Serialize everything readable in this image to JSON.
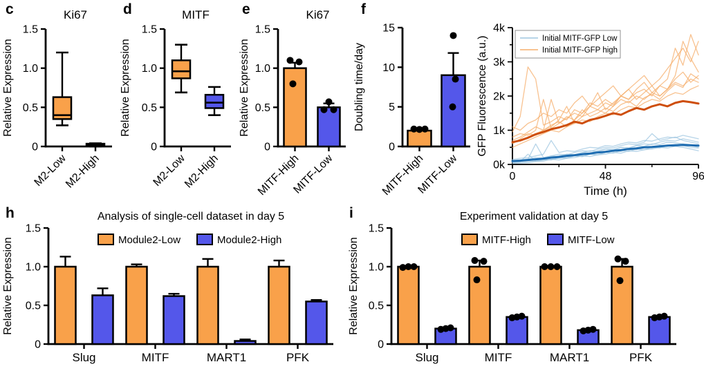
{
  "colors": {
    "orange": "#F9A14A",
    "blue": "#5457EA",
    "black": "#000000",
    "line_orange_faint": "#F6AE6B",
    "line_orange_bold": "#CE4E0B",
    "line_blue_faint": "#9DC6E0",
    "line_blue_bold": "#1D6CB1",
    "legend_border": "#909090"
  },
  "chart_data": [
    {
      "panel": "c",
      "type": "box",
      "title": "Ki67",
      "ylabel": "Relative Expression",
      "ylim": [
        0,
        1.5
      ],
      "yticks": [
        0,
        0.5,
        1.0,
        1.5
      ],
      "ytick_labels": [
        "0",
        "0.5",
        "1.0",
        "1.5"
      ],
      "items": [
        {
          "label": "M2-Low",
          "color": "orange",
          "lo": 0.27,
          "q1": 0.35,
          "med": 0.4,
          "q3": 0.63,
          "hi": 1.2
        },
        {
          "label": "M2-High",
          "color": "black",
          "lo": 0.0,
          "q1": 0.005,
          "med": 0.02,
          "q3": 0.035,
          "hi": 0.04
        }
      ]
    },
    {
      "panel": "d",
      "type": "box",
      "title": "MITF",
      "ylabel": "Relative Expression",
      "ylim": [
        0,
        1.5
      ],
      "yticks": [
        0,
        0.5,
        1.0,
        1.5
      ],
      "ytick_labels": [
        "0",
        "0.5",
        "1.0",
        "1.5"
      ],
      "items": [
        {
          "label": "M2-Low",
          "color": "orange",
          "lo": 0.69,
          "q1": 0.87,
          "med": 0.96,
          "q3": 1.1,
          "hi": 1.3
        },
        {
          "label": "M2-High",
          "color": "blue",
          "lo": 0.4,
          "q1": 0.49,
          "med": 0.56,
          "q3": 0.66,
          "hi": 0.76
        }
      ]
    },
    {
      "panel": "e",
      "type": "bar",
      "title": "Ki67",
      "ylabel": "Relative Expression",
      "ylim": [
        0,
        1.5
      ],
      "yticks": [
        0,
        0.5,
        1.0,
        1.5
      ],
      "ytick_labels": [
        "0",
        "0.5",
        "1.0",
        "1.5"
      ],
      "bars": [
        {
          "label": "MITF-High",
          "color": "orange",
          "value": 1.0,
          "err": 0.07,
          "dots": [
            1.1,
            1.08,
            0.8
          ],
          "dx": [
            -7,
            6,
            -3
          ]
        },
        {
          "label": "MITF-Low",
          "color": "blue",
          "value": 0.5,
          "err": 0.05,
          "dots": [
            0.57,
            0.47,
            0.47
          ],
          "dx": [
            0,
            -7,
            7
          ]
        }
      ]
    },
    {
      "panel": "f",
      "type": "bar",
      "title": "",
      "ylabel": "Doubling time/day",
      "ylim": [
        0,
        15
      ],
      "yticks": [
        0,
        5,
        10,
        15
      ],
      "ytick_labels": [
        "0",
        "5",
        "10",
        "15"
      ],
      "bars": [
        {
          "label": "MITF-High",
          "color": "orange",
          "value": 2.0,
          "err": null,
          "dots": [
            2.2,
            2.15,
            2.2
          ],
          "dx": [
            -8,
            0,
            8
          ]
        },
        {
          "label": "MITF-Low",
          "color": "blue",
          "value": 9.0,
          "err": 2.8,
          "dots": [
            14.0,
            8.5,
            5.0
          ],
          "dx": [
            0,
            3,
            -1
          ]
        }
      ]
    },
    {
      "panel": "",
      "type": "line",
      "title": "",
      "ylabel": "GFP Fluorescence (a.u.)",
      "xlabel": "Time (h)",
      "ylim": [
        0,
        4000
      ],
      "yticks": [
        0,
        1000,
        2000,
        3000,
        4000
      ],
      "ytick_labels": [
        "0k",
        "1k",
        "2k",
        "3k",
        "4k"
      ],
      "yminor": [
        500,
        1500,
        2500,
        3500
      ],
      "xlim": [
        0,
        96
      ],
      "xticks": [
        0,
        48,
        96
      ],
      "xtick_labels": [
        "0",
        "48",
        "96"
      ],
      "xminor": [
        24,
        72
      ],
      "legend": [
        {
          "label": "Initial MITF-GFP Low",
          "color": "blue"
        },
        {
          "label": "Initial MITF-GFP high",
          "color": "orange"
        }
      ],
      "traces": [
        {
          "group": "orange",
          "bold": false,
          "y": [
            950,
            1400,
            2850,
            2500,
            1150,
            1250,
            1400,
            1300,
            1600,
            1500,
            1800,
            1700,
            1900,
            1750,
            2000,
            1900,
            2100,
            2200,
            2000,
            2300,
            2200,
            2600,
            3600,
            3100,
            2700
          ]
        },
        {
          "group": "orange",
          "bold": false,
          "y": [
            700,
            800,
            950,
            1100,
            1000,
            1900,
            1200,
            1350,
            1500,
            1400,
            1700,
            2100,
            1600,
            1800,
            2000,
            1900,
            2200,
            2400,
            2100,
            2300,
            2500,
            3400,
            2900,
            3800,
            3200
          ]
        },
        {
          "group": "orange",
          "bold": false,
          "y": [
            600,
            750,
            900,
            850,
            1000,
            1100,
            1300,
            1700,
            1200,
            1400,
            1500,
            1600,
            1800,
            1700,
            2000,
            2200,
            1900,
            2100,
            2300,
            2000,
            2200,
            2500,
            2700,
            2400,
            2600
          ]
        },
        {
          "group": "orange",
          "bold": false,
          "y": [
            1100,
            1000,
            1200,
            1300,
            1500,
            1400,
            1600,
            1500,
            1800,
            2000,
            1700,
            1900,
            2100,
            2300,
            2000,
            2200,
            2400,
            2600,
            2300,
            2500,
            2800,
            3100,
            3400,
            3000,
            3600
          ]
        },
        {
          "group": "orange",
          "bold": false,
          "y": [
            500,
            600,
            700,
            800,
            900,
            1000,
            950,
            1100,
            1200,
            1300,
            1250,
            1400,
            1500,
            1450,
            1600,
            1700,
            1650,
            1800,
            1900,
            1850,
            2000,
            2100,
            2050,
            2200,
            2300
          ]
        },
        {
          "group": "orange",
          "bold": false,
          "y": [
            800,
            900,
            850,
            1000,
            1900,
            1050,
            1200,
            1400,
            1300,
            1500,
            1700,
            1600,
            1500,
            1700,
            1900,
            1800,
            2000,
            1900,
            2100,
            2000,
            2200,
            2400,
            2300,
            2500,
            2400
          ]
        },
        {
          "group": "orange",
          "bold": false,
          "y": [
            650,
            700,
            800,
            900,
            1000,
            1150,
            1250,
            1100,
            1300,
            1600,
            1400,
            1500,
            1650,
            1550,
            1750,
            1850,
            1700,
            1950,
            2050,
            1900,
            2150,
            2350,
            2250,
            2650,
            2500
          ]
        },
        {
          "group": "blue",
          "bold": false,
          "y": [
            100,
            120,
            150,
            600,
            200,
            250,
            300,
            280,
            350,
            400,
            380,
            450,
            500,
            480,
            550,
            600,
            580,
            650,
            900,
            700,
            750,
            800,
            700,
            650,
            600
          ]
        },
        {
          "group": "blue",
          "bold": false,
          "y": [
            80,
            100,
            120,
            150,
            180,
            200,
            250,
            300,
            280,
            350,
            330,
            400,
            450,
            420,
            500,
            480,
            550,
            600,
            580,
            650,
            700,
            680,
            750,
            700,
            650
          ]
        },
        {
          "group": "blue",
          "bold": false,
          "y": [
            150,
            180,
            200,
            250,
            300,
            700,
            350,
            400,
            380,
            450,
            500,
            480,
            550,
            530,
            600,
            650,
            630,
            700,
            680,
            750,
            800,
            780,
            850,
            800,
            750
          ]
        },
        {
          "group": "blue",
          "bold": false,
          "y": [
            50,
            60,
            80,
            100,
            120,
            150,
            180,
            200,
            250,
            230,
            300,
            280,
            350,
            330,
            400,
            380,
            450,
            430,
            500,
            480,
            550,
            530,
            600,
            580,
            550
          ]
        },
        {
          "group": "blue",
          "bold": false,
          "y": [
            120,
            140,
            160,
            200,
            180,
            250,
            230,
            300,
            280,
            350,
            400,
            380,
            450,
            430,
            500,
            480,
            550,
            530,
            600,
            580,
            650,
            630,
            600,
            550,
            500
          ]
        },
        {
          "group": "blue",
          "bold": false,
          "y": [
            30,
            40,
            50,
            80,
            100,
            150,
            130,
            180,
            200,
            250,
            230,
            280,
            300,
            350,
            330,
            400,
            380,
            430,
            450,
            500,
            480,
            530,
            500,
            450,
            400
          ]
        },
        {
          "group": "blue",
          "bold": false,
          "y": [
            60,
            80,
            300,
            100,
            150,
            130,
            200,
            180,
            250,
            230,
            300,
            280,
            350,
            400,
            380,
            450,
            430,
            500,
            480,
            550,
            530,
            580,
            550,
            500,
            480
          ]
        },
        {
          "group": "orange",
          "bold": true,
          "y": [
            650,
            700,
            780,
            880,
            950,
            1030,
            1080,
            1150,
            1250,
            1200,
            1300,
            1350,
            1420,
            1500,
            1450,
            1560,
            1650,
            1600,
            1700,
            1760,
            1700,
            1800,
            1850,
            1820,
            1780
          ]
        },
        {
          "group": "blue",
          "bold": true,
          "y": [
            100,
            110,
            130,
            150,
            170,
            200,
            220,
            250,
            270,
            300,
            320,
            350,
            370,
            400,
            420,
            450,
            470,
            500,
            510,
            530,
            550,
            560,
            570,
            560,
            550
          ]
        }
      ]
    },
    {
      "panel": "h",
      "type": "groupbar",
      "title": "Analysis of single-cell dataset in day 5",
      "ylabel": "Relative Expression",
      "ylim": [
        0,
        1.5
      ],
      "yticks": [
        0,
        0.5,
        1.0,
        1.5
      ],
      "ytick_labels": [
        "0",
        "0.5",
        "1.0",
        "1.5"
      ],
      "categories": [
        "Slug",
        "MITF",
        "MART1",
        "PFK"
      ],
      "legend": [
        {
          "label": "Module2-Low",
          "color": "orange"
        },
        {
          "label": "Module2-High",
          "color": "blue"
        }
      ],
      "series": [
        {
          "name": "Module2-Low",
          "color": "orange",
          "values": [
            1.0,
            1.0,
            1.0,
            1.0
          ],
          "errs": [
            0.13,
            0.03,
            0.1,
            0.08
          ],
          "dots": null,
          "dx": null
        },
        {
          "name": "Module2-High",
          "color": "blue",
          "values": [
            0.63,
            0.62,
            0.04,
            0.55
          ],
          "errs": [
            0.09,
            0.03,
            0.02,
            0.02
          ],
          "dots": null,
          "dx": null
        }
      ]
    },
    {
      "panel": "i",
      "type": "groupbar",
      "title": "Experiment validation at day 5",
      "ylabel": "Relative Expression",
      "ylim": [
        0,
        1.5
      ],
      "yticks": [
        0,
        0.5,
        1.0,
        1.5
      ],
      "ytick_labels": [
        "0",
        "0.5",
        "1.0",
        "1.5"
      ],
      "categories": [
        "Slug",
        "MITF",
        "MART1",
        "PFK"
      ],
      "legend": [
        {
          "label": "MITF-High",
          "color": "orange"
        },
        {
          "label": "MITF-Low",
          "color": "blue"
        }
      ],
      "series": [
        {
          "name": "MITF-High",
          "color": "orange",
          "values": [
            1.0,
            1.0,
            1.0,
            1.0
          ],
          "errs": [
            null,
            0.08,
            null,
            0.1
          ],
          "dots": [
            [
              0.99,
              1.0,
              1.0
            ],
            [
              1.08,
              1.07,
              0.83
            ],
            [
              1.0,
              1.0,
              1.0
            ],
            [
              1.1,
              1.07,
              0.82
            ]
          ],
          "dx": [
            [
              -8,
              0,
              8
            ],
            [
              -7,
              6,
              -4
            ],
            [
              -9,
              0,
              9
            ],
            [
              -6,
              5,
              -3
            ]
          ]
        },
        {
          "name": "MITF-Low",
          "color": "blue",
          "values": [
            0.2,
            0.35,
            0.18,
            0.35
          ],
          "errs": [
            null,
            null,
            null,
            null
          ],
          "dots": [
            [
              0.19,
              0.2,
              0.21
            ],
            [
              0.34,
              0.35,
              0.36
            ],
            [
              0.17,
              0.18,
              0.19
            ],
            [
              0.34,
              0.35,
              0.36
            ]
          ],
          "dx": [
            [
              -7,
              0,
              7
            ],
            [
              -7,
              0,
              7
            ],
            [
              -7,
              0,
              7
            ],
            [
              -7,
              0,
              7
            ]
          ]
        }
      ]
    }
  ]
}
